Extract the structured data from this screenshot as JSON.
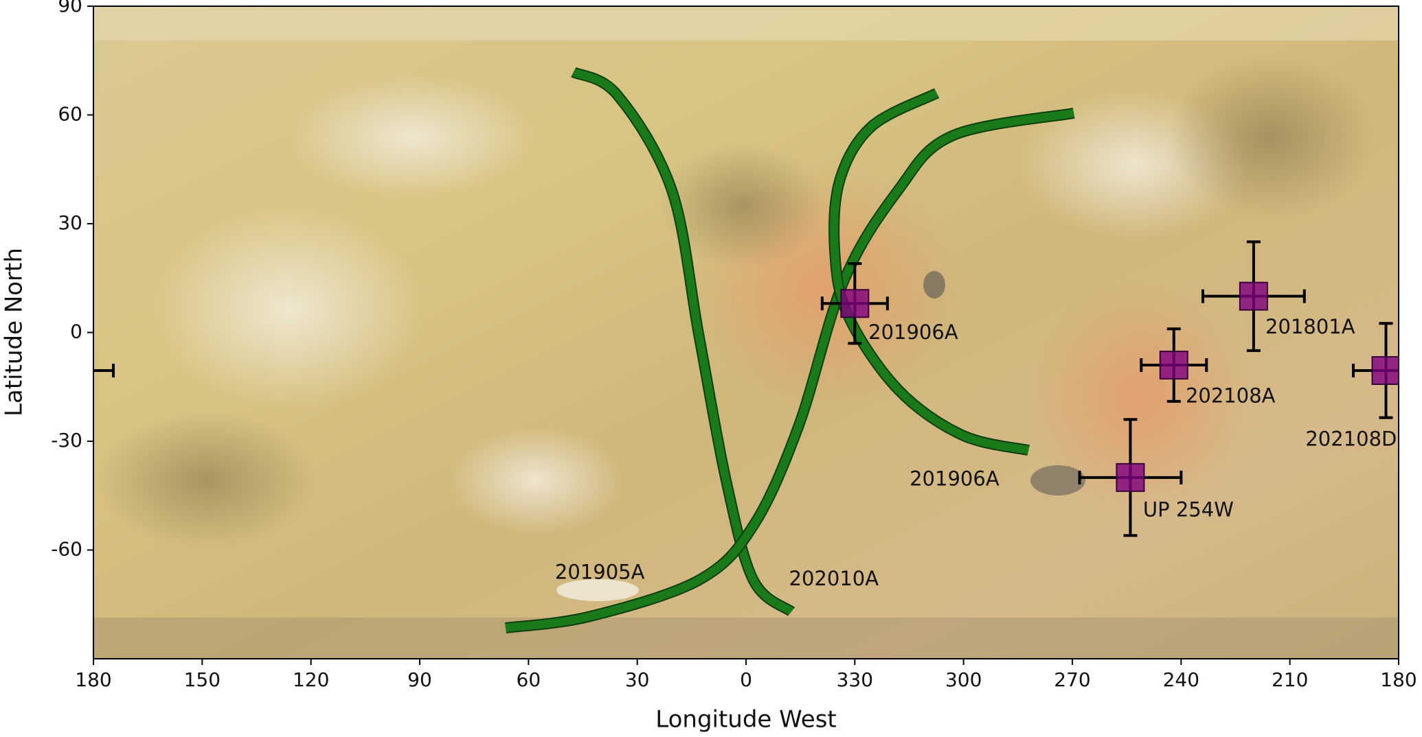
{
  "chart_data": {
    "type": "scatter",
    "xlabel": "Longitude West",
    "ylabel": "Latitude North",
    "xlim": [
      540,
      180
    ],
    "ylim": [
      -90,
      90
    ],
    "xticks": [
      {
        "value": 540,
        "label": "180"
      },
      {
        "value": 510,
        "label": "150"
      },
      {
        "value": 480,
        "label": "120"
      },
      {
        "value": 450,
        "label": "90"
      },
      {
        "value": 420,
        "label": "60"
      },
      {
        "value": 390,
        "label": "30"
      },
      {
        "value": 360,
        "label": "0"
      },
      330,
      300,
      270,
      240,
      210,
      180
    ],
    "yticks": [
      -60,
      -30,
      0,
      30,
      60,
      90
    ],
    "marker_color": "#800080",
    "points": [
      {
        "label": "201906A",
        "x": 330,
        "y": 8,
        "xerr": 9,
        "yerr": 11
      },
      {
        "label": "201801A",
        "x": 220,
        "y": 10,
        "xerr": 14,
        "yerr": 15
      },
      {
        "label": "202108A",
        "x": 242,
        "y": -9,
        "xerr": 9,
        "yerr": 10
      },
      {
        "label": "202108D",
        "x": 183.5,
        "y": -10.5,
        "xerr": 9,
        "yerr": 13
      },
      {
        "label": "UP 254W",
        "x": 254,
        "y": -40,
        "xerr": 14,
        "yerr": 16
      }
    ],
    "curves": [
      {
        "name": "202010A",
        "color": "#1a7a1a",
        "x": [
          407.6,
          395.5,
          380.5,
          373,
          365.5,
          358,
          347.5
        ],
        "y": [
          71.8,
          65.5,
          39.3,
          -0.8,
          -40.8,
          -68.3,
          -77
        ]
      },
      {
        "name": "201905A",
        "color": "#1a7a1a",
        "x": [
          426.3,
          403,
          373,
          358,
          345.5,
          333,
          318,
          303,
          269.6
        ],
        "y": [
          -81.5,
          -78.3,
          -68.3,
          -53.3,
          -25.8,
          14.3,
          39.3,
          54.3,
          60.5
        ]
      },
      {
        "name": "201906A",
        "color": "#1a7a1a",
        "x": [
          307.4,
          325.4,
          334.2,
          335.5,
          331.7,
          318,
          300.4,
          282.1
        ],
        "y": [
          66,
          56.8,
          41.8,
          21.8,
          4.3,
          -15.8,
          -28.3,
          -32.5
        ]
      }
    ]
  }
}
